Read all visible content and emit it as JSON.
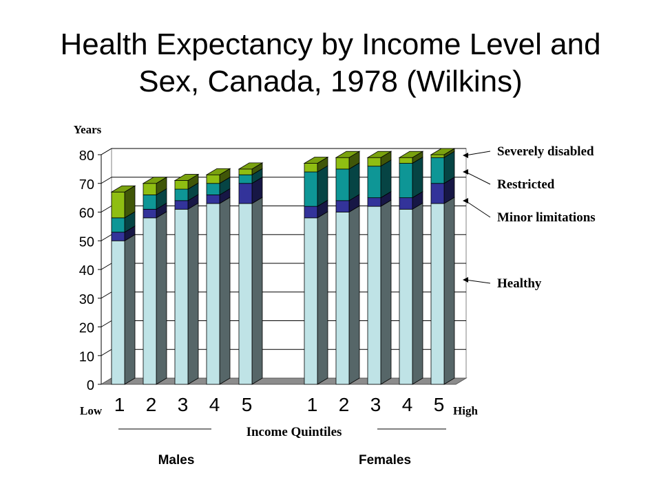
{
  "title_line1": "Health Expectancy by Income Level and",
  "title_line2": "Sex, Canada, 1978 (Wilkins)",
  "chart_data": {
    "type": "bar",
    "stacked": true,
    "three_d": true,
    "title": "Health Expectancy by Income Level and Sex, Canada, 1978 (Wilkins)",
    "ylabel": "Years",
    "xlabel": "Income Quintiles",
    "ylim": [
      0,
      80
    ],
    "yticks": [
      0,
      10,
      20,
      30,
      40,
      50,
      60,
      70,
      80
    ],
    "grid": true,
    "x_low_label": "Low",
    "x_high_label": "High",
    "groups": [
      {
        "name": "Males",
        "categories": [
          "1",
          "2",
          "3",
          "4",
          "5"
        ]
      },
      {
        "name": "Females",
        "categories": [
          "1",
          "2",
          "3",
          "4",
          "5"
        ]
      }
    ],
    "series": [
      {
        "name": "Healthy",
        "color": "#bfe3e6",
        "values": [
          50,
          58,
          61,
          63,
          63,
          58,
          60,
          62,
          61,
          63
        ]
      },
      {
        "name": "Minor limitations",
        "color": "#33339a",
        "values": [
          3,
          3,
          3,
          3,
          7,
          4,
          4,
          3,
          4,
          7
        ]
      },
      {
        "name": "Restricted",
        "color": "#0e9696",
        "values": [
          5,
          5,
          4,
          4,
          3,
          12,
          11,
          11,
          12,
          9
        ]
      },
      {
        "name": "Severely disabled",
        "color": "#8fbe12",
        "values": [
          9,
          4,
          3,
          3,
          2,
          3,
          4,
          3,
          2,
          1
        ]
      }
    ],
    "legend_placement": "right"
  }
}
